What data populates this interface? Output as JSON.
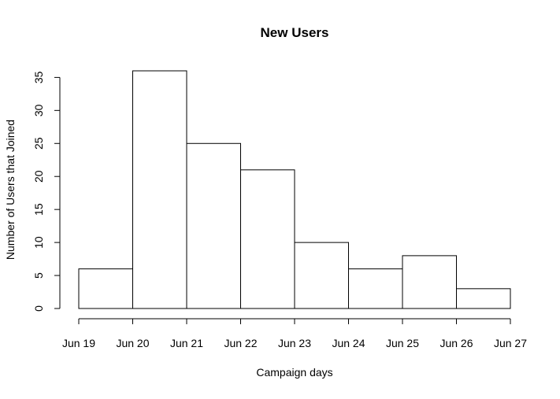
{
  "chart_data": {
    "type": "bar",
    "title": "New Users",
    "xlabel": "Campaign days",
    "ylabel": "Number of Users that Joined",
    "x_ticks": [
      "Jun 19",
      "Jun 20",
      "Jun 21",
      "Jun 22",
      "Jun 23",
      "Jun 24",
      "Jun 25",
      "Jun 26",
      "Jun 27"
    ],
    "y_ticks": [
      0,
      5,
      10,
      15,
      20,
      25,
      30,
      35
    ],
    "bins": [
      {
        "start": "Jun 19",
        "end": "Jun 20",
        "value": 6
      },
      {
        "start": "Jun 20",
        "end": "Jun 21",
        "value": 36
      },
      {
        "start": "Jun 21",
        "end": "Jun 22",
        "value": 25
      },
      {
        "start": "Jun 22",
        "end": "Jun 23",
        "value": 21
      },
      {
        "start": "Jun 23",
        "end": "Jun 24",
        "value": 10
      },
      {
        "start": "Jun 24",
        "end": "Jun 25",
        "value": 6
      },
      {
        "start": "Jun 25",
        "end": "Jun 26",
        "value": 8
      },
      {
        "start": "Jun 26",
        "end": "Jun 27",
        "value": 3
      }
    ],
    "ylim": [
      0,
      36
    ],
    "grid": false,
    "bar_fill": "#ffffff",
    "bar_stroke": "#000000"
  }
}
